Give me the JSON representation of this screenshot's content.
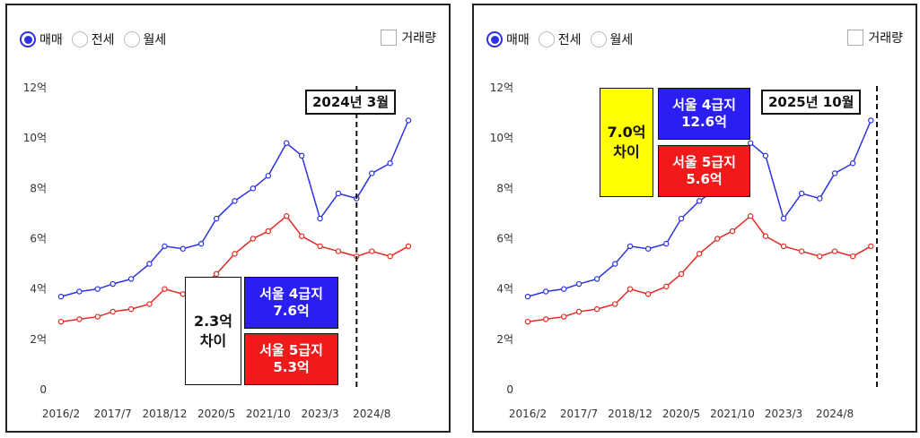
{
  "controls": {
    "radio_options": [
      "매매",
      "전세",
      "월세"
    ],
    "selected": "매매",
    "checkbox_label": "거래량"
  },
  "colors": {
    "seoul4": "#2c32e0",
    "seoul5": "#e52a24",
    "seoul4_box": "#2a1ff0",
    "seoul5_box": "#f01a1a",
    "diff_left": "#ffffff",
    "diff_right": "#ffff00"
  },
  "panels": [
    {
      "marker_label": "2024년 3월",
      "diff_line1": "2.3억",
      "diff_line2": "차이",
      "box4_line1": "서울 4급지",
      "box4_line2": "7.6억",
      "box5_line1": "서울 5급지",
      "box5_line2": "5.3억"
    },
    {
      "marker_label": "2025년 10월",
      "diff_line1": "7.0억",
      "diff_line2": "차이",
      "box4_line1": "서울 4급지",
      "box4_line2": "12.6억",
      "box5_line1": "서울 5급지",
      "box5_line2": "5.6억"
    }
  ],
  "chart_data": [
    {
      "type": "line",
      "x": [
        "2016/2",
        "2016/8",
        "2017/2",
        "2017/7",
        "2018/1",
        "2018/7",
        "2018/12",
        "2019/6",
        "2019/12",
        "2020/5",
        "2020/11",
        "2021/5",
        "2021/10",
        "2022/4",
        "2022/9",
        "2023/3",
        "2023/9",
        "2024/3",
        "2024/8",
        "2025/2",
        "2025/8"
      ],
      "x_tick_labels": [
        "2016/2",
        "2017/7",
        "2018/12",
        "2020/5",
        "2021/10",
        "2023/3",
        "2024/8"
      ],
      "y_tick_labels": [
        "0",
        "2억",
        "4억",
        "6억",
        "8억",
        "10억",
        "12억"
      ],
      "ylim": [
        0,
        12
      ],
      "marker_x": "2024/3",
      "series": [
        {
          "name": "서울 4급지",
          "values": [
            3.7,
            3.9,
            4.0,
            4.2,
            4.4,
            5.0,
            5.7,
            5.6,
            5.8,
            6.8,
            7.5,
            8.0,
            8.5,
            9.8,
            9.3,
            6.8,
            7.8,
            7.6,
            8.6,
            9.0,
            10.7
          ]
        },
        {
          "name": "서울 5급지",
          "values": [
            2.7,
            2.8,
            2.9,
            3.1,
            3.2,
            3.4,
            4.0,
            3.8,
            4.1,
            4.6,
            5.4,
            6.0,
            6.3,
            6.9,
            6.1,
            5.7,
            5.5,
            5.3,
            5.5,
            5.3,
            5.7
          ]
        }
      ]
    },
    {
      "type": "line",
      "x": [
        "2016/2",
        "2016/8",
        "2017/2",
        "2017/7",
        "2018/1",
        "2018/7",
        "2018/12",
        "2019/6",
        "2019/12",
        "2020/5",
        "2020/11",
        "2021/5",
        "2021/10",
        "2022/4",
        "2022/9",
        "2023/3",
        "2023/9",
        "2024/3",
        "2024/8",
        "2025/2",
        "2025/8"
      ],
      "x_tick_labels": [
        "2016/2",
        "2017/7",
        "2018/12",
        "2020/5",
        "2021/10",
        "2023/3",
        "2024/8"
      ],
      "y_tick_labels": [
        "0",
        "2억",
        "4억",
        "6억",
        "8억",
        "10억",
        "12억"
      ],
      "ylim": [
        0,
        12
      ],
      "marker_x": "2025/10",
      "series": [
        {
          "name": "서울 4급지",
          "values": [
            3.7,
            3.9,
            4.0,
            4.2,
            4.4,
            5.0,
            5.7,
            5.6,
            5.8,
            6.8,
            7.5,
            8.0,
            8.5,
            9.8,
            9.3,
            6.8,
            7.8,
            7.6,
            8.6,
            9.0,
            10.7
          ]
        },
        {
          "name": "서울 5급지",
          "values": [
            2.7,
            2.8,
            2.9,
            3.1,
            3.2,
            3.4,
            4.0,
            3.8,
            4.1,
            4.6,
            5.4,
            6.0,
            6.3,
            6.9,
            6.1,
            5.7,
            5.5,
            5.3,
            5.5,
            5.3,
            5.7
          ]
        }
      ]
    }
  ]
}
